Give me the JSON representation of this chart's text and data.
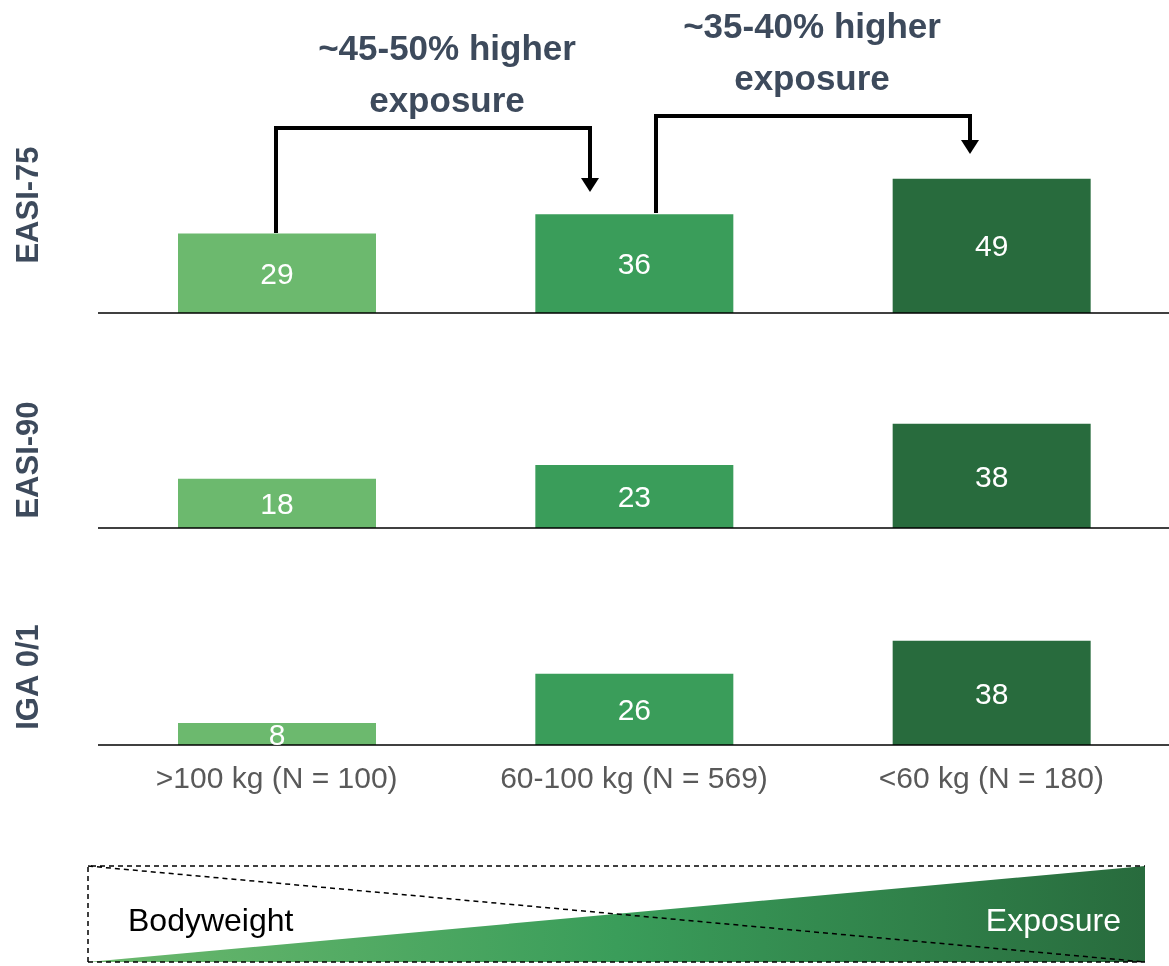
{
  "chart_data": [
    {
      "type": "bar",
      "ylabel": "EASI-75",
      "categories": [
        null,
        null,
        null
      ],
      "values": [
        29,
        36,
        49
      ],
      "colors": [
        "#6cb96e",
        "#3a9d5a",
        "#286b3d"
      ],
      "data_labels": true,
      "tick_labels": false,
      "annotations": [
        "~45-50% higher exposure",
        "~35-40% higher exposure"
      ]
    },
    {
      "type": "bar",
      "ylabel": "EASI-90",
      "categories": [
        null,
        null,
        null
      ],
      "values": [
        18,
        23,
        38
      ],
      "colors": [
        "#6cb96e",
        "#3a9d5a",
        "#286b3d"
      ],
      "data_labels": true,
      "tick_labels": false
    },
    {
      "type": "bar",
      "ylabel": "IGA 0/1",
      "categories": [
        ">100 kg (N = 100)",
        "60-100 kg (N = 569)",
        "<60 kg (N = 180)"
      ],
      "values": [
        8,
        26,
        38
      ],
      "colors": [
        "#6cb96e",
        "#3a9d5a",
        "#286b3d"
      ],
      "data_labels": true,
      "tick_labels": "x",
      "annotations": [
        "Bodyweight",
        "Exposure"
      ]
    }
  ]
}
